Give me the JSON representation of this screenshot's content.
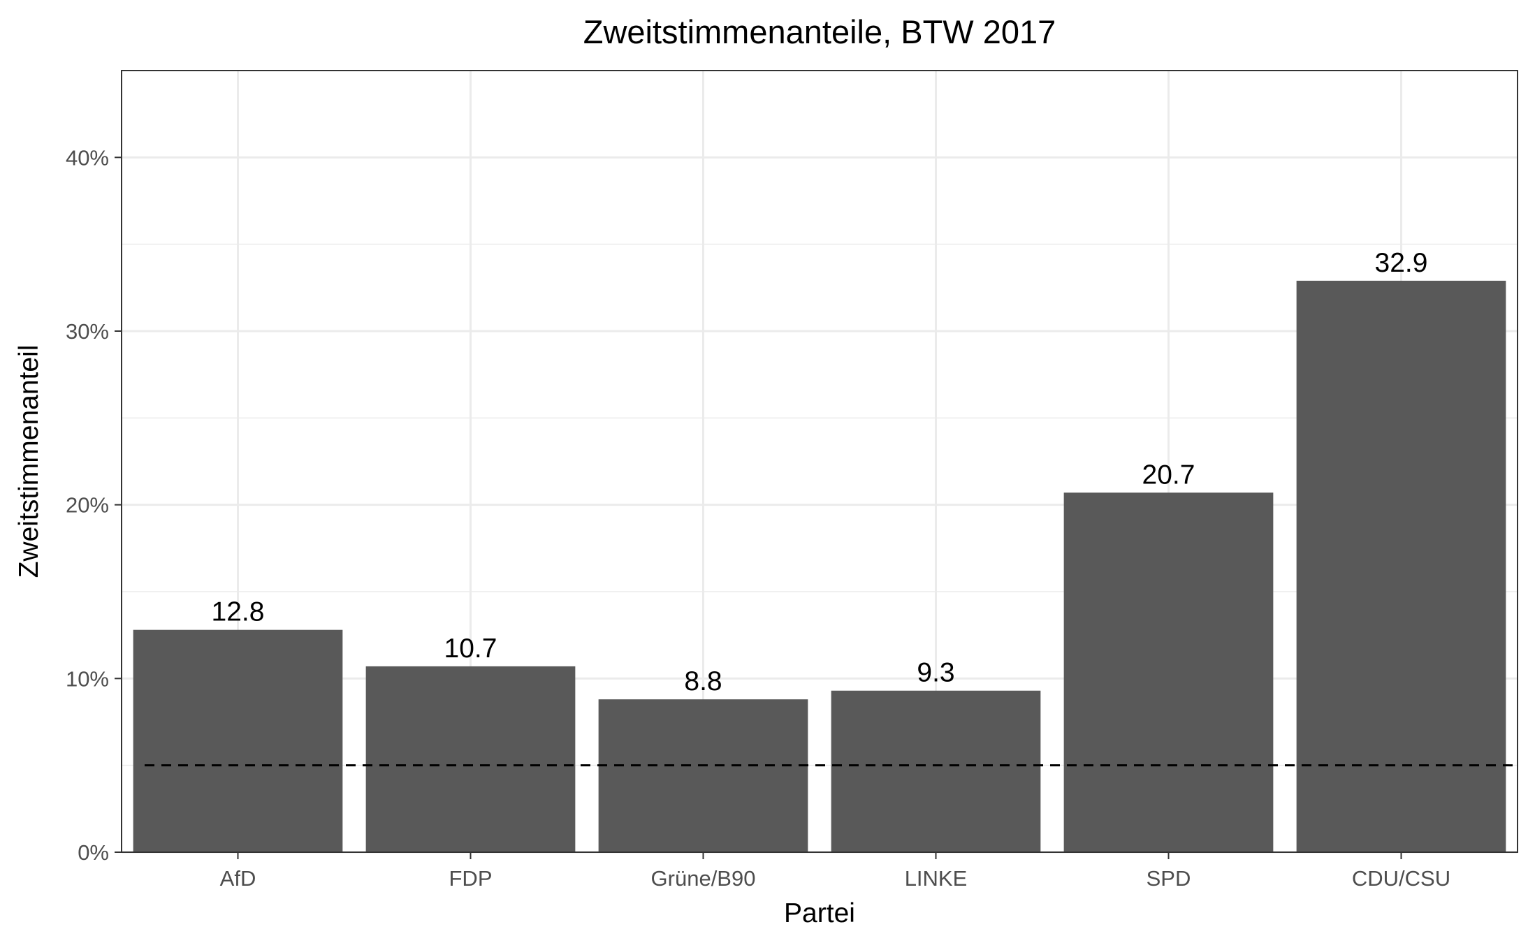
{
  "chart_data": {
    "type": "bar",
    "title": "Zweitstimmenanteile, BTW 2017",
    "xlabel": "Partei",
    "ylabel": "Zweitstimmenanteil",
    "categories": [
      "AfD",
      "FDP",
      "Grüne/B90",
      "LINKE",
      "SPD",
      "CDU/CSU"
    ],
    "values": [
      12.8,
      10.7,
      8.8,
      9.3,
      20.7,
      32.9
    ],
    "data_labels": [
      "12.8",
      "10.7",
      "8.8",
      "9.3",
      "20.7",
      "32.9"
    ],
    "ylim": [
      0,
      45
    ],
    "yticks": [
      0,
      10,
      20,
      30,
      40
    ],
    "ytick_labels": [
      "0%",
      "10%",
      "20%",
      "30%",
      "40%"
    ],
    "reference_line": {
      "y": 5,
      "style": "dashed"
    },
    "bar_color": "#595959",
    "grid": true
  }
}
